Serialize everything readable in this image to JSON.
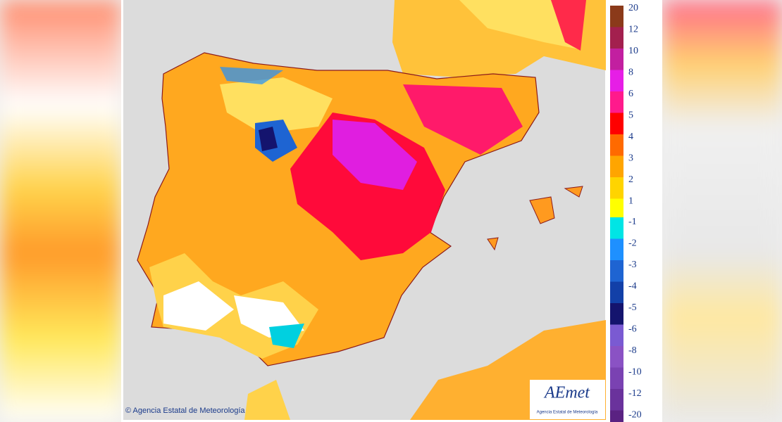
{
  "legend": {
    "positive": [
      {
        "label": "20",
        "color": "#8b3a1a"
      },
      {
        "label": "12",
        "color": "#a3204e"
      },
      {
        "label": "10",
        "color": "#c21fa0"
      },
      {
        "label": "8",
        "color": "#e61ee6"
      },
      {
        "label": "6",
        "color": "#ff1a8c"
      },
      {
        "label": "5",
        "color": "#ff0000"
      },
      {
        "label": "4",
        "color": "#ff6a00"
      },
      {
        "label": "3",
        "color": "#ffa500"
      },
      {
        "label": "2",
        "color": "#ffd400"
      },
      {
        "label": "1",
        "color": "#ffff00"
      }
    ],
    "negative": [
      {
        "label": "-1",
        "color": "#00e5e5"
      },
      {
        "label": "-2",
        "color": "#1e90ff"
      },
      {
        "label": "-3",
        "color": "#1e64d2"
      },
      {
        "label": "-4",
        "color": "#1240a8"
      },
      {
        "label": "-5",
        "color": "#14146e"
      },
      {
        "label": "-6",
        "color": "#7a5ad2"
      },
      {
        "label": "-8",
        "color": "#8a52c4"
      },
      {
        "label": "-10",
        "color": "#7a42b2"
      },
      {
        "label": "-12",
        "color": "#6a329c"
      },
      {
        "label": "-20",
        "color": "#5a2282"
      }
    ]
  },
  "copyright": "© Agencia Estatal de Meteorología",
  "logo": {
    "name": "AEmet",
    "subtitle": "Agencia Estatal de Meteorología"
  }
}
